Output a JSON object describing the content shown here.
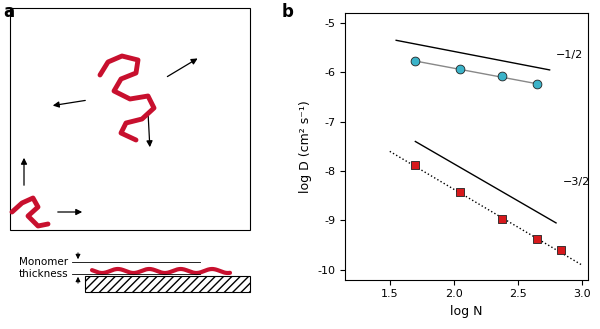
{
  "diagram": {
    "panel_label": "a",
    "thickness_label": "Monomer thickness"
  },
  "chart_data": {
    "panel_label": "b",
    "type": "scatter",
    "x_label": "log N",
    "y_label": "log D (cm² s⁻¹)",
    "xlim": [
      1.15,
      3.05
    ],
    "xticks": [
      1.5,
      2.0,
      2.5,
      3.0
    ],
    "ylim": [
      -10.2,
      -4.8
    ],
    "yticks": [
      -5,
      -6,
      -7,
      -8,
      -9,
      -10
    ],
    "grid": false,
    "series": [
      {
        "type": "scatter",
        "marker": "o",
        "color": "#3bb3c9",
        "x": [
          1.7,
          2.05,
          2.38,
          2.65
        ],
        "values": [
          -5.77,
          -5.93,
          -6.08,
          -6.23
        ]
      },
      {
        "type": "scatter",
        "marker": "s",
        "color": "#d7191c",
        "x": [
          1.7,
          2.05,
          2.38,
          2.65,
          2.84
        ],
        "values": [
          -7.88,
          -8.43,
          -8.97,
          -9.37,
          -9.6
        ]
      },
      {
        "type": "line",
        "line_style": "solid",
        "color": "#888888",
        "x": [
          1.7,
          2.65
        ],
        "values": [
          -5.77,
          -6.23
        ]
      },
      {
        "type": "line",
        "line_style": "dotted",
        "color": "#000000",
        "x": [
          1.5,
          3.0
        ],
        "values": [
          -7.6,
          -9.9
        ]
      },
      {
        "type": "line",
        "line_style": "solid",
        "color": "#000000",
        "label": "−1/2",
        "x": [
          1.55,
          2.75
        ],
        "values": [
          -5.35,
          -5.95
        ]
      },
      {
        "type": "line",
        "line_style": "solid",
        "color": "#000000",
        "label": "−3/2",
        "x": [
          1.7,
          2.8
        ],
        "values": [
          -7.4,
          -9.05
        ]
      }
    ]
  }
}
